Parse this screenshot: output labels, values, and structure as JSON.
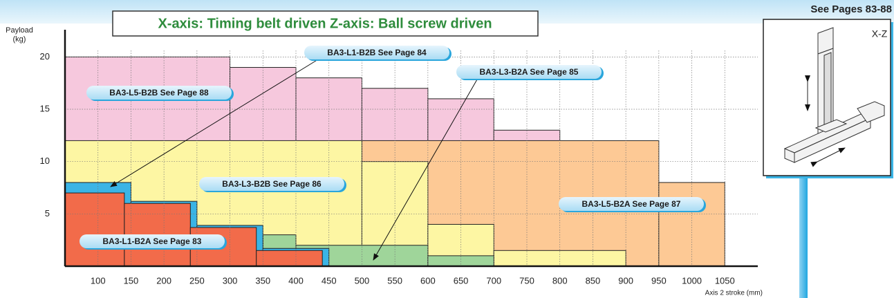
{
  "chart_data": {
    "type": "step-area",
    "title": "X-axis: Timing belt driven Z-axis: Ball screw driven",
    "reference": "See Pages 83-88",
    "diagram_label": "X-Z",
    "y_label": [
      "Payload",
      "(kg)"
    ],
    "x_label": "Axis 2 stroke (mm)",
    "xlim": [
      50,
      1100
    ],
    "ylim": [
      0,
      22.6
    ],
    "xticks": [
      100,
      150,
      200,
      250,
      300,
      350,
      400,
      450,
      500,
      550,
      600,
      650,
      700,
      750,
      800,
      850,
      900,
      950,
      1000,
      1050
    ],
    "yticks": [
      5,
      10,
      15,
      20
    ],
    "grid": true,
    "series": [
      {
        "name": "BA3-L5-B2B See Page 88",
        "color": "#f6c8dd",
        "bins": [
          50,
          300,
          400,
          500,
          600,
          700,
          800
        ],
        "values": [
          20,
          19,
          18,
          17,
          16,
          13
        ]
      },
      {
        "name": "BA3-L5-B2A See Page 87",
        "color": "#fdc995",
        "bins": [
          500,
          950,
          1050
        ],
        "values": [
          12,
          8
        ]
      },
      {
        "name": "BA3-L3-B2B See Page 86",
        "color": "#fdf6a3",
        "bins": [
          50,
          500,
          600,
          700,
          900
        ],
        "values": [
          12,
          10,
          4,
          1.5
        ]
      },
      {
        "name": "BA3-L3-B2A See Page 85",
        "color": "#9fd59a",
        "bins": [
          350,
          400,
          600,
          700
        ],
        "values": [
          3,
          2,
          1
        ]
      },
      {
        "name": "BA3-L1-B2B See Page 84",
        "color": "#3bb4e5",
        "bins": [
          50,
          150,
          250,
          350,
          450
        ],
        "values": [
          8,
          6.2,
          3.9,
          1.7
        ]
      },
      {
        "name": "BA3-L1-B2A See Page 83",
        "color": "#f26b4a",
        "bins": [
          50,
          140,
          240,
          340,
          440
        ],
        "values": [
          7,
          6,
          3.7,
          1.5
        ]
      }
    ]
  }
}
